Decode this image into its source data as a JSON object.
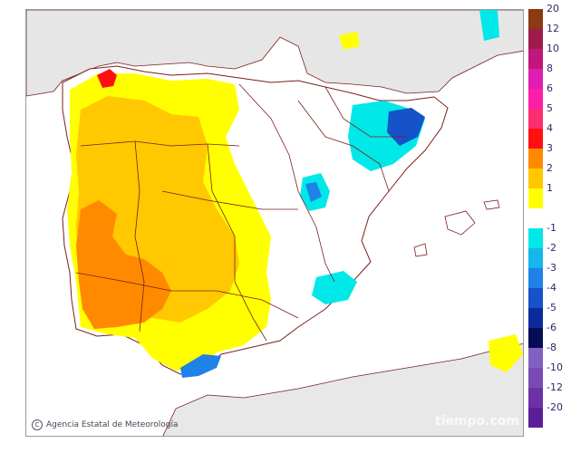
{
  "credit": {
    "text": "Agencia Estatal de Meteorología"
  },
  "watermark": {
    "text": "tiempo.com"
  },
  "colors": {
    "sea": "#ffffff",
    "land_outside": "#e6e6e6",
    "africa": "#e8e8e8",
    "border": "#7a1e1e",
    "neutral": "#ffffff"
  },
  "legend": {
    "warm": [
      {
        "label": "20",
        "color": "#8a3b12"
      },
      {
        "label": "12",
        "color": "#9e1b4a"
      },
      {
        "label": "10",
        "color": "#c2167a"
      },
      {
        "label": "8",
        "color": "#e01eb4"
      },
      {
        "label": "6",
        "color": "#ff1ea8"
      },
      {
        "label": "5",
        "color": "#ff2e6e"
      },
      {
        "label": "4",
        "color": "#ff1010"
      },
      {
        "label": "3",
        "color": "#ff8a00"
      },
      {
        "label": "2",
        "color": "#ffc800"
      },
      {
        "label": "1",
        "color": "#ffff00"
      }
    ],
    "cold": [
      {
        "label": "-1",
        "color": "#00e8e8"
      },
      {
        "label": "-2",
        "color": "#16b6ec"
      },
      {
        "label": "-3",
        "color": "#1e82e8"
      },
      {
        "label": "-4",
        "color": "#1652c8"
      },
      {
        "label": "-5",
        "color": "#0c2a9a"
      },
      {
        "label": "-6",
        "color": "#060c58"
      },
      {
        "label": "-8",
        "color": "#8060c0"
      },
      {
        "label": "-10",
        "color": "#7a4ab4"
      },
      {
        "label": "-12",
        "color": "#6a32a6"
      },
      {
        "label": "-20",
        "color": "#5c1e96"
      }
    ]
  }
}
